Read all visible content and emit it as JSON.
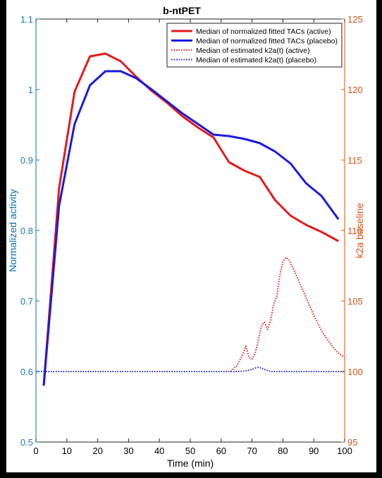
{
  "colors": {
    "active": "#e41a1c",
    "placebo": "#1a1adc",
    "left_axis": "#0072bd",
    "right_axis": "#d95319"
  },
  "chart_data": {
    "type": "line",
    "title": "b-ntPET",
    "xlabel": "Time (min)",
    "ylabel": "Normalized activity",
    "ylabel_right": "k2a baseline",
    "xlim": [
      0,
      100
    ],
    "ylim": [
      0.5,
      1.1
    ],
    "ylim_right": [
      95,
      125
    ],
    "x_ticks": [
      "0",
      "10",
      "20",
      "30",
      "40",
      "50",
      "60",
      "70",
      "80",
      "90",
      "100"
    ],
    "y_ticks": [
      "0.5",
      "0.6",
      "0.7",
      "0.8",
      "0.9",
      "1",
      "1.1"
    ],
    "y_ticks_right": [
      "95",
      "100",
      "105",
      "110",
      "115",
      "120",
      "125"
    ],
    "grid": false,
    "legend_position": "top-right",
    "series": [
      {
        "name": "Median of normalized fitted TACs (active)",
        "axis": "left",
        "style": "solid",
        "color": "#e41a1c",
        "x": [
          2.5,
          7.5,
          12.5,
          17.5,
          22.5,
          27.5,
          32.5,
          37.5,
          42.5,
          47.5,
          52.5,
          57.5,
          62.5,
          67.5,
          72.5,
          77.5,
          82.5,
          87.5,
          92.5,
          98
        ],
        "y": [
          0.58,
          0.86,
          0.997,
          1.047,
          1.051,
          1.04,
          1.018,
          0.998,
          0.981,
          0.962,
          0.946,
          0.932,
          0.897,
          0.885,
          0.876,
          0.843,
          0.821,
          0.808,
          0.798,
          0.785
        ]
      },
      {
        "name": "Median of normalized fitted TACs  (placebo)",
        "axis": "left",
        "style": "solid",
        "color": "#1a1adc",
        "x": [
          2.5,
          7.5,
          12.5,
          17.5,
          22.5,
          27.5,
          32.5,
          37.5,
          42.5,
          47.5,
          52.5,
          57.5,
          62.5,
          67.5,
          72.5,
          77.5,
          82.5,
          87.5,
          92.5,
          98
        ],
        "y": [
          0.58,
          0.835,
          0.951,
          1.006,
          1.026,
          1.026,
          1.016,
          1.0,
          0.983,
          0.966,
          0.951,
          0.936,
          0.934,
          0.93,
          0.924,
          0.912,
          0.895,
          0.867,
          0.849,
          0.816
        ]
      },
      {
        "name": "Median of estimated k2a(t) (active)",
        "axis": "right",
        "style": "dotted",
        "color": "#e41a1c",
        "x": [
          0,
          63,
          65,
          67,
          68,
          69,
          70,
          71,
          72,
          73,
          74,
          75,
          76,
          77,
          78,
          79,
          80,
          81,
          82,
          84,
          86,
          88,
          90,
          92,
          94,
          96,
          98,
          100
        ],
        "y": [
          100,
          100,
          100.4,
          101.2,
          101.8,
          101.0,
          100.9,
          101.3,
          102.2,
          103.2,
          103.5,
          103.0,
          103.6,
          104.8,
          105.3,
          106.8,
          107.8,
          108.1,
          107.9,
          107.0,
          106.0,
          105.0,
          104.0,
          103.1,
          102.4,
          101.8,
          101.3,
          101.0
        ]
      },
      {
        "name": "Median of estimated k2a(t) (placebo)",
        "axis": "right",
        "style": "dotted",
        "color": "#1a1adc",
        "x": [
          0,
          66,
          68,
          70,
          71,
          72,
          73,
          74,
          76,
          100
        ],
        "y": [
          100,
          100,
          100.05,
          100.15,
          100.25,
          100.3,
          100.25,
          100.15,
          100,
          100
        ]
      }
    ]
  }
}
